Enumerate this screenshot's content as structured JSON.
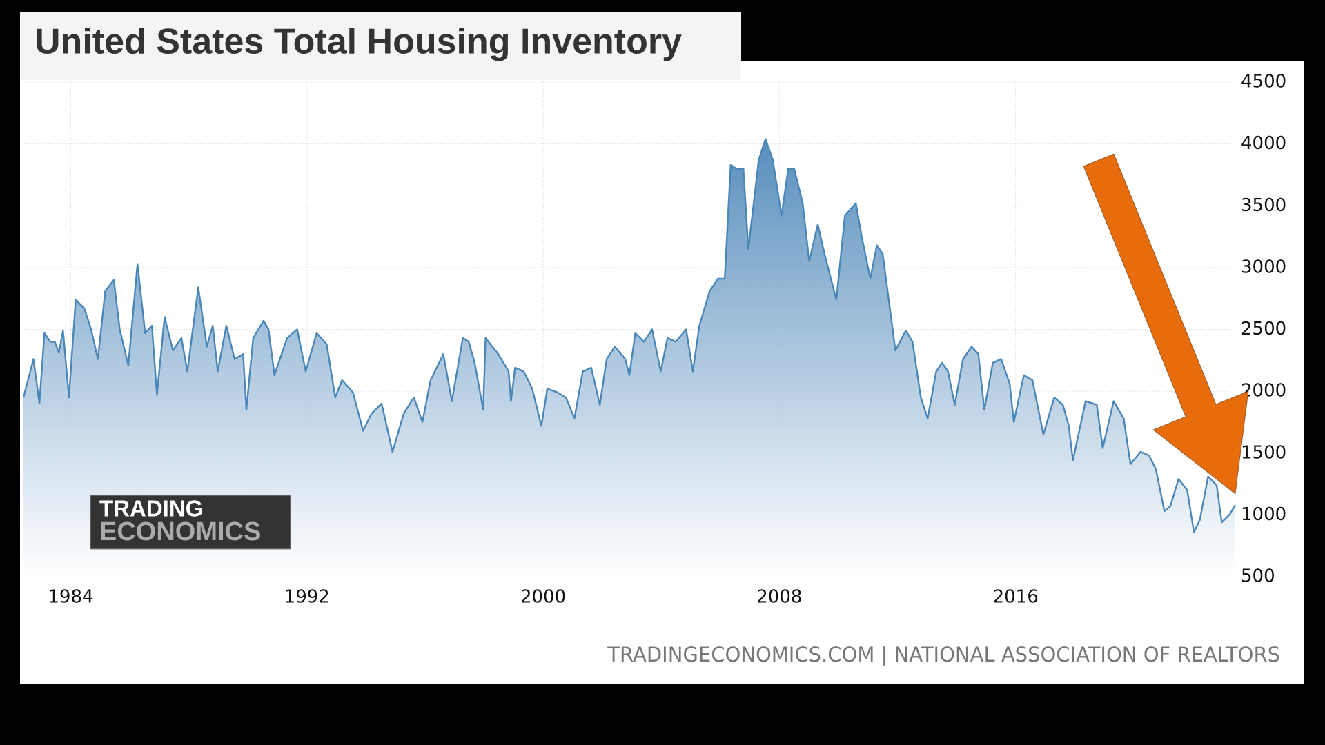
{
  "chart_data": {
    "type": "area",
    "title": "United States Total Housing Inventory",
    "source": "TRADINGECONOMICS.COM | NATIONAL ASSOCIATION OF REALTORS",
    "logo": [
      "TRADING",
      "ECONOMICS"
    ],
    "color": "#4a86b8",
    "grid": true,
    "xlim": [
      1982.4,
      2023.44
    ],
    "ylim": [
      500,
      4500
    ],
    "xticks": [
      1984,
      1992,
      2000,
      2008,
      2016
    ],
    "yticks": [
      500,
      1000,
      1500,
      2000,
      2500,
      3000,
      3500,
      4000,
      4500
    ],
    "series": [
      {
        "name": "Total Housing Inventory",
        "color": "#4a86b8",
        "x": [
          1982.4,
          1982.74,
          1982.94,
          1983.11,
          1983.31,
          1983.46,
          1983.6,
          1983.74,
          1983.94,
          1984.17,
          1984.46,
          1984.69,
          1984.92,
          1985.17,
          1985.46,
          1985.66,
          1985.95,
          1986.26,
          1986.52,
          1986.75,
          1986.92,
          1987.18,
          1987.46,
          1987.75,
          1987.95,
          1988.32,
          1988.61,
          1988.81,
          1988.98,
          1989.27,
          1989.55,
          1989.84,
          1989.95,
          1990.18,
          1990.53,
          1990.7,
          1990.9,
          1991.33,
          1991.67,
          1991.96,
          1992.33,
          1992.67,
          1992.96,
          1993.19,
          1993.56,
          1993.9,
          1994.19,
          1994.53,
          1994.9,
          1995.28,
          1995.62,
          1995.91,
          1996.19,
          1996.62,
          1996.91,
          1997.28,
          1997.48,
          1997.68,
          1997.97,
          1998.05,
          1998.48,
          1998.83,
          1998.91,
          1999.05,
          1999.34,
          1999.63,
          1999.94,
          2000.14,
          2000.49,
          2000.77,
          2001.06,
          2001.34,
          2001.63,
          2001.92,
          2002.15,
          2002.43,
          2002.78,
          2002.92,
          2003.12,
          2003.41,
          2003.69,
          2003.98,
          2004.21,
          2004.49,
          2004.84,
          2005.07,
          2005.29,
          2005.64,
          2005.92,
          2006.15,
          2006.35,
          2006.55,
          2006.78,
          2006.95,
          2007.3,
          2007.53,
          2007.78,
          2008.07,
          2008.3,
          2008.5,
          2008.79,
          2009.01,
          2009.3,
          2009.53,
          2009.93,
          2010.22,
          2010.59,
          2010.79,
          2011.08,
          2011.3,
          2011.5,
          2011.93,
          2012.28,
          2012.51,
          2012.79,
          2013.02,
          2013.31,
          2013.51,
          2013.71,
          2013.94,
          2014.22,
          2014.51,
          2014.74,
          2014.94,
          2015.23,
          2015.51,
          2015.8,
          2015.94,
          2016.28,
          2016.57,
          2016.94,
          2017.31,
          2017.6,
          2017.8,
          2017.94,
          2018.37,
          2018.75,
          2018.95,
          2019.32,
          2019.66,
          2019.89,
          2020.23,
          2020.52,
          2020.75,
          2021.04,
          2021.24,
          2021.52,
          2021.81,
          2022.04,
          2022.24,
          2022.52,
          2022.81,
          2022.98,
          2023.24,
          2023.44
        ],
        "values": [
          1950,
          2260,
          1900,
          2470,
          2400,
          2400,
          2310,
          2490,
          1950,
          2740,
          2670,
          2500,
          2260,
          2810,
          2900,
          2500,
          2210,
          3030,
          2470,
          2530,
          1970,
          2600,
          2330,
          2430,
          2160,
          2840,
          2360,
          2530,
          2160,
          2530,
          2260,
          2300,
          1850,
          2430,
          2570,
          2500,
          2130,
          2430,
          2500,
          2160,
          2470,
          2380,
          1950,
          2090,
          1990,
          1680,
          1820,
          1900,
          1510,
          1820,
          1950,
          1750,
          2090,
          2300,
          1920,
          2430,
          2400,
          2230,
          1850,
          2430,
          2300,
          2160,
          1920,
          2190,
          2160,
          2020,
          1720,
          2020,
          1990,
          1950,
          1780,
          2160,
          2190,
          1890,
          2260,
          2360,
          2260,
          2130,
          2470,
          2400,
          2500,
          2160,
          2430,
          2400,
          2500,
          2160,
          2530,
          2810,
          2910,
          2910,
          3830,
          3800,
          3800,
          3150,
          3870,
          4040,
          3870,
          3420,
          3800,
          3800,
          3520,
          3050,
          3350,
          3110,
          2740,
          3420,
          3520,
          3250,
          2910,
          3180,
          3110,
          2330,
          2490,
          2400,
          1950,
          1780,
          2160,
          2230,
          2160,
          1890,
          2260,
          2360,
          2300,
          1850,
          2230,
          2260,
          2060,
          1750,
          2130,
          2090,
          1650,
          1950,
          1890,
          1720,
          1440,
          1920,
          1890,
          1540,
          1920,
          1780,
          1410,
          1510,
          1480,
          1370,
          1030,
          1070,
          1290,
          1200,
          860,
          960,
          1310,
          1240,
          940,
          1000,
          1080
        ]
      }
    ]
  }
}
